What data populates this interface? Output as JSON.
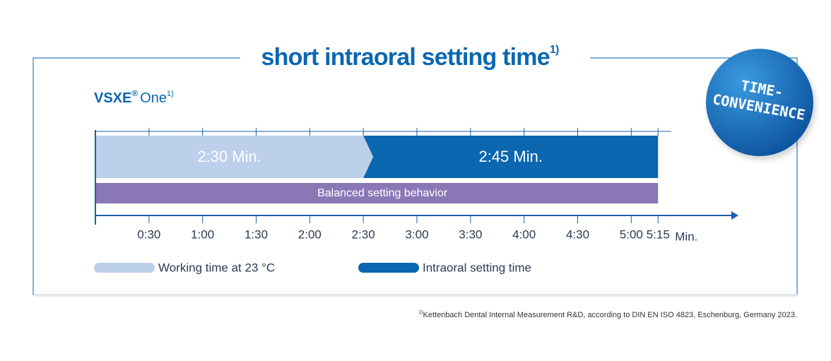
{
  "chart_data": {
    "type": "bar",
    "orientation": "horizontal",
    "stacked": true,
    "title": "short intraoral setting time",
    "title_sup": "1)",
    "product": "VSXE",
    "product_mark": "®",
    "product_name": "One",
    "product_sup": "1)",
    "badge": [
      "TIME-",
      "CONVENIENCE"
    ],
    "series": [
      {
        "name": "Working time at 23 °C",
        "color": "#bccfeb",
        "values": [
          2.5
        ],
        "value_labels": [
          "2:30 Min."
        ]
      },
      {
        "name": "Intraoral setting time",
        "color": "#0a67b0",
        "values": [
          2.75
        ],
        "value_labels": [
          "2:45 Min."
        ]
      }
    ],
    "band": {
      "label": "Balanced setting behavior",
      "color": "#8a77b5"
    },
    "xlim": [
      0,
      6
    ],
    "xticks": [
      {
        "value": 0.5,
        "label": "0:30"
      },
      {
        "value": 1,
        "label": "1:00"
      },
      {
        "value": 1.5,
        "label": "1:30"
      },
      {
        "value": 2,
        "label": "2:00"
      },
      {
        "value": 2.5,
        "label": "2:30"
      },
      {
        "value": 3,
        "label": "3:00"
      },
      {
        "value": 3.5,
        "label": "3:30"
      },
      {
        "value": 4,
        "label": "4:00"
      },
      {
        "value": 4.5,
        "label": "4:30"
      },
      {
        "value": 5,
        "label": "5:00"
      },
      {
        "value": 5.25,
        "label": "5:15"
      }
    ],
    "xlabel": "Min.",
    "footnote_sup": "1)",
    "footnote": "Kettenbach Dental Internal Measurement R&D, according to DIN EN ISO 4823, Eschenburg, Germany 2023."
  }
}
